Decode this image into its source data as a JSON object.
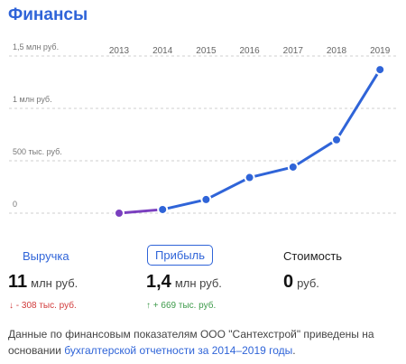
{
  "header": {
    "title": "Финансы"
  },
  "chart_data": {
    "type": "line",
    "x": [
      "2013",
      "2014",
      "2015",
      "2016",
      "2017",
      "2018",
      "2019"
    ],
    "values": [
      0,
      35,
      130,
      340,
      440,
      700,
      1370
    ],
    "unit": "тыс. руб.",
    "ylim": [
      0,
      1500
    ],
    "y_ticks": [
      {
        "value": 0,
        "label": "0"
      },
      {
        "value": 500,
        "label": "500 тыс. руб."
      },
      {
        "value": 1000,
        "label": "1 млн руб."
      },
      {
        "value": 1500,
        "label": "1,5 млн руб."
      }
    ],
    "grid": true,
    "line_color": "#2f64d8",
    "first_segment_color": "#7a3fbf"
  },
  "metrics": {
    "revenue": {
      "label": "Выручка",
      "value": "11",
      "unit": "млн руб.",
      "change": "↓ - 308 тыс. руб."
    },
    "profit": {
      "label": "Прибыль",
      "value": "1,4",
      "unit": "млн руб.",
      "change": "↑ + 669 тыс. руб."
    },
    "cost": {
      "label": "Стоимость",
      "value": "0",
      "unit": "руб."
    }
  },
  "note": {
    "text": "Данные по финансовым показателям ООО \"Сантехстрой\" приведены на основании ",
    "link": "бухгалтерской отчетности за 2014–2019 годы",
    "end": "."
  }
}
